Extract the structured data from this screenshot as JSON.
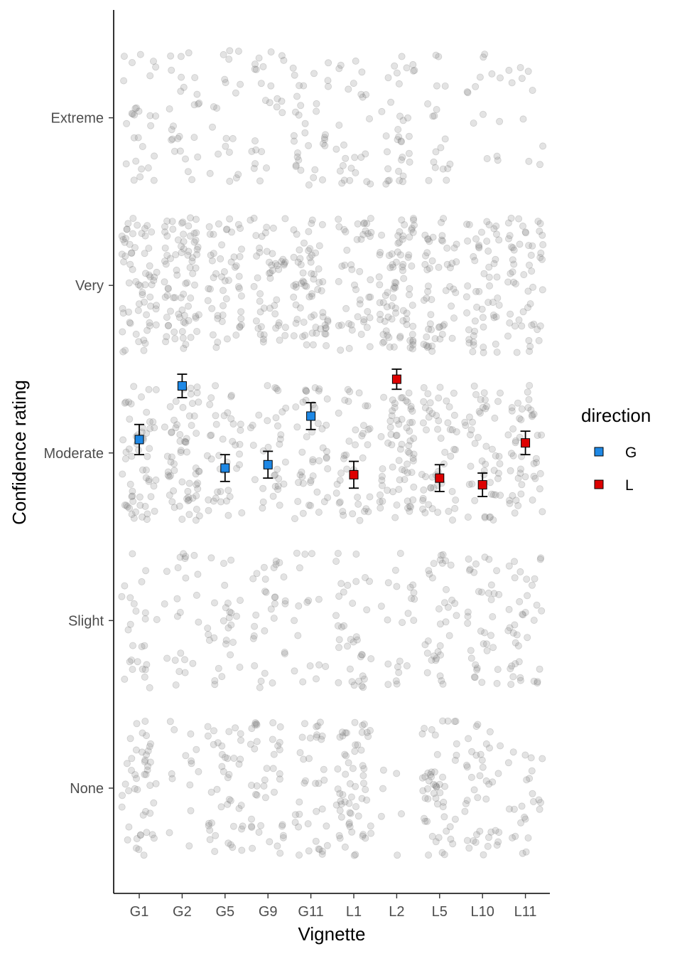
{
  "chart_data": {
    "type": "scatter",
    "xlabel": "Vignette",
    "ylabel": "Confidence rating",
    "categories": [
      "G1",
      "G2",
      "G5",
      "G9",
      "G11",
      "L1",
      "L2",
      "L5",
      "L10",
      "L11"
    ],
    "y_levels": [
      "None",
      "Slight",
      "Moderate",
      "Very",
      "Extreme"
    ],
    "ylim": [
      0.35,
      5.55
    ],
    "grid": false,
    "legend": {
      "title": "direction",
      "position": "right",
      "entries": [
        {
          "label": "G",
          "color": "#1e88e5"
        },
        {
          "label": "L",
          "color": "#dd0000"
        }
      ]
    },
    "series": [
      {
        "name": "G",
        "color": "#1e88e5",
        "categories": [
          "G1",
          "G2",
          "G5",
          "G9",
          "G11"
        ],
        "means": [
          3.08,
          3.4,
          2.91,
          2.93,
          3.22
        ],
        "error_low": [
          2.99,
          3.33,
          2.83,
          2.85,
          3.14
        ],
        "error_high": [
          3.17,
          3.47,
          2.99,
          3.01,
          3.3
        ]
      },
      {
        "name": "L",
        "color": "#dd0000",
        "categories": [
          "L1",
          "L2",
          "L5",
          "L10",
          "L11"
        ],
        "means": [
          2.87,
          3.44,
          2.85,
          2.81,
          3.06
        ],
        "error_low": [
          2.79,
          3.38,
          2.77,
          2.74,
          2.99
        ],
        "error_high": [
          2.95,
          3.5,
          2.93,
          2.88,
          3.13
        ]
      }
    ],
    "jitter_points": {
      "description_counts": {
        "G1": [
          46,
          26,
          58,
          66,
          28
        ],
        "G2": [
          14,
          23,
          64,
          78,
          26
        ],
        "G5": [
          42,
          28,
          40,
          52,
          20
        ],
        "G9": [
          40,
          30,
          34,
          50,
          24
        ],
        "G11": [
          36,
          16,
          44,
          66,
          34
        ],
        "L1": [
          60,
          36,
          40,
          46,
          26
        ],
        "L2": [
          6,
          22,
          68,
          80,
          34
        ],
        "L5": [
          52,
          34,
          52,
          54,
          18
        ],
        "L10": [
          40,
          36,
          48,
          54,
          14
        ],
        "L11": [
          24,
          38,
          46,
          54,
          10
        ]
      },
      "color": "#7f7f7f",
      "opacity": 0.22
    }
  }
}
